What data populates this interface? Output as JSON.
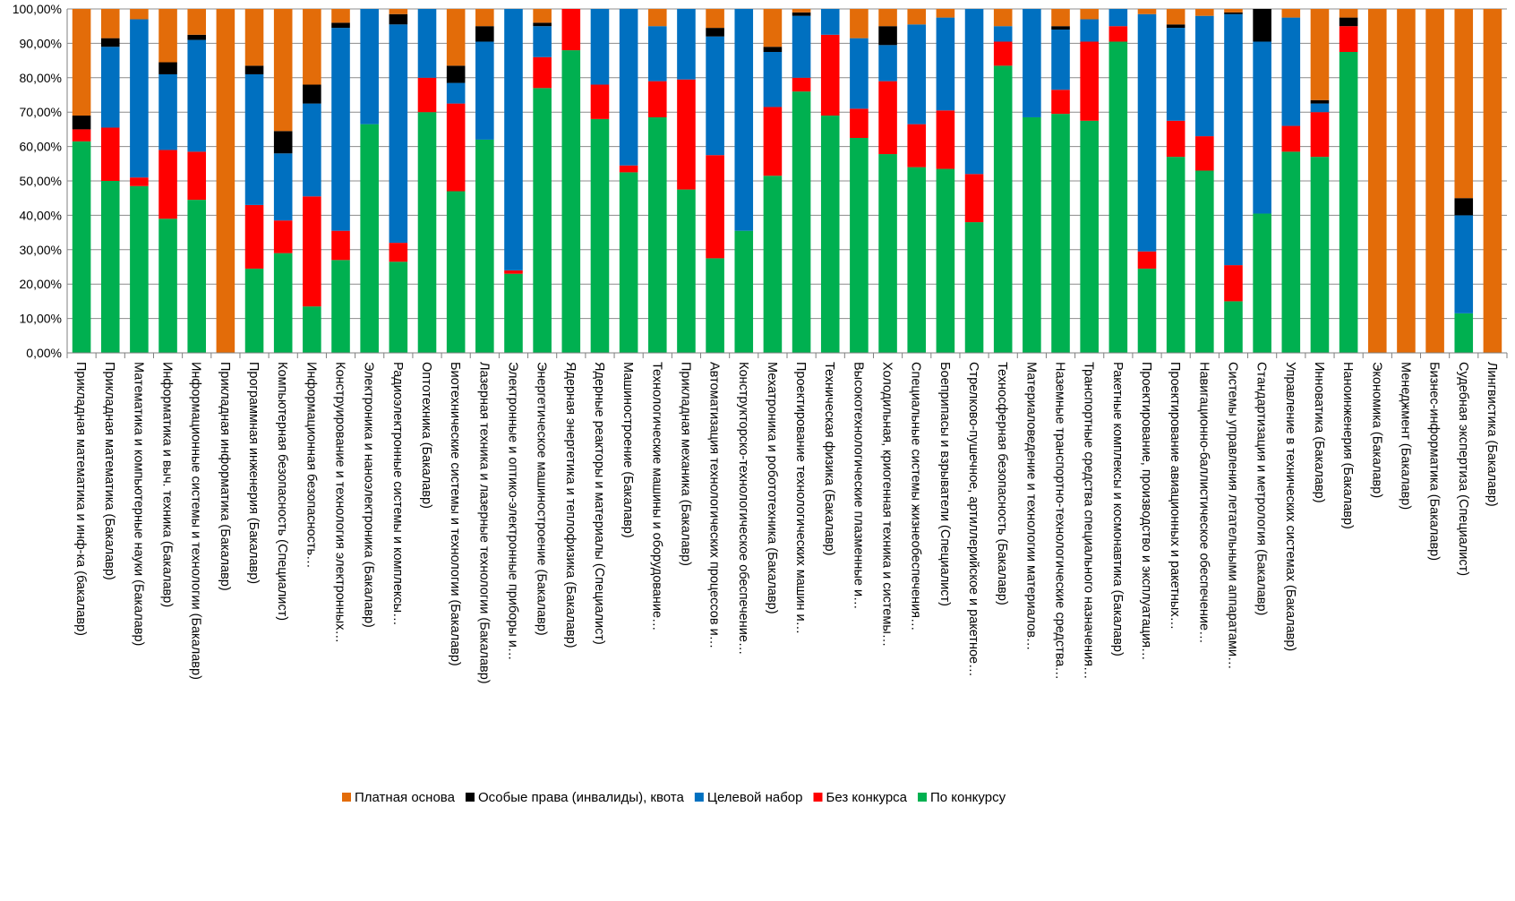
{
  "chart_data": {
    "type": "bar",
    "stacked": true,
    "percent_stacked": true,
    "title": "",
    "xlabel": "",
    "ylabel": "",
    "ylim": [
      0,
      1
    ],
    "yticks": [
      "0,00%",
      "10,00%",
      "20,00%",
      "30,00%",
      "40,00%",
      "50,00%",
      "60,00%",
      "70,00%",
      "80,00%",
      "90,00%",
      "100,00%"
    ],
    "grid": true,
    "legend_position": "bottom",
    "categories": [
      "Прикладная математика и инф-ка (бакалавр)",
      "Прикладная математика (Бакалавр)",
      "Математика и компьютерные науки (Бакалавр)",
      "Информатика и выч. техника (Бакалавр)",
      "Информационные системы и технологии (Бакалавр)",
      "Прикладная информатика (Бакалавр)",
      "Программная инженерия (Бакалавр)",
      "Компьютерная безопасность (Специалист)",
      "Информационная безопасность…",
      "Конструирование и технология электронных…",
      "Электроника и наноэлектроника (Бакалавр)",
      "Радиоэлектронные системы и комплексы…",
      "Оптотехника (Бакалавр)",
      "Биотехнические системы и технологии (Бакалавр)",
      "Лазерная техника и лазерные технологии (Бакалавр)",
      "Электронные и оптико-электронные приборы и…",
      "Энергетическое машиностроение (Бакалавр)",
      "Ядерная энергетика и теплофизика (Бакалавр)",
      "Ядерные реакторы и материалы (Специалист)",
      "Машиностроение (Бакалавр)",
      "Технологические машины и оборудование…",
      "Прикладная механика (Бакалавр)",
      "Автоматизация технологических процессов и…",
      "Конструкторско-технологическое обеспечение…",
      "Мехатроника и робототехника (Бакалавр)",
      "Проектирование технологических машин и…",
      "Техническая физика (Бакалавр)",
      "Высокотехнологические плазменные и…",
      "Холодильная, криогенная техника и системы…",
      "Специальные системы жизнеобеспечения…",
      "Боеприпасы и взрыватели (Специалист)",
      "Стрелково-пушечное, артиллерийское и ракетное…",
      "Техносферная безопасность (Бакалавр)",
      "Материаловедение и технологии материалов…",
      "Наземные транспортно-технологические средства…",
      "Транспортные средства специального назначения…",
      "Ракетные комплексы и космонавтика (Бакалавр)",
      "Проектирование, производство и эксплуатация…",
      "Проектирование авиационных и ракетных…",
      "Навигационно-баллистическое обеспечение…",
      "Системы управления летательными аппаратами…",
      "Стандартизация и метрология (Бакалавр)",
      "Управление в технических системах (Бакалавр)",
      "Инноватика (Бакалавр)",
      "Наноинженерия (Бакалавр)",
      "Экономика (Бакалавр)",
      "Менеджмент (Бакалавр)",
      "Бизнес-информатика (Бакалавр)",
      "Судебная экспертиза (Специалист)",
      "Лингвистика (Бакалавр)"
    ],
    "series": [
      {
        "name": "По конкурсу",
        "color": "#00B050",
        "values": [
          0.615,
          0.5,
          0.485,
          0.39,
          0.445,
          0.0,
          0.245,
          0.29,
          0.135,
          0.27,
          0.665,
          0.265,
          0.7,
          0.47,
          0.62,
          0.23,
          0.77,
          0.88,
          0.68,
          0.525,
          0.685,
          0.475,
          0.275,
          0.355,
          0.515,
          0.76,
          0.69,
          0.625,
          0.578,
          0.54,
          0.535,
          0.38,
          0.835,
          0.685,
          0.695,
          0.675,
          0.905,
          0.245,
          0.57,
          0.53,
          0.15,
          0.405,
          0.585,
          0.57,
          0.875,
          0.0,
          0.0,
          0.0,
          0.115,
          0.0
        ]
      },
      {
        "name": "Без конкурса",
        "color": "#FF0000",
        "values": [
          0.035,
          0.155,
          0.025,
          0.2,
          0.14,
          0.0,
          0.185,
          0.095,
          0.32,
          0.085,
          0.0,
          0.055,
          0.1,
          0.255,
          0.0,
          0.01,
          0.09,
          0.12,
          0.1,
          0.02,
          0.105,
          0.32,
          0.3,
          0.0,
          0.2,
          0.04,
          0.235,
          0.085,
          0.212,
          0.125,
          0.17,
          0.14,
          0.07,
          0.0,
          0.07,
          0.23,
          0.045,
          0.05,
          0.105,
          0.1,
          0.105,
          0.0,
          0.075,
          0.13,
          0.075,
          0.0,
          0.0,
          0.0,
          0.0,
          0.0
        ]
      },
      {
        "name": "Целевой набор",
        "color": "#0070C0",
        "values": [
          0.0,
          0.235,
          0.46,
          0.22,
          0.325,
          0.0,
          0.38,
          0.195,
          0.27,
          0.59,
          0.335,
          0.635,
          0.2,
          0.06,
          0.285,
          0.76,
          0.09,
          0.0,
          0.22,
          0.455,
          0.16,
          0.205,
          0.345,
          0.645,
          0.16,
          0.18,
          0.075,
          0.205,
          0.105,
          0.29,
          0.27,
          0.48,
          0.045,
          0.315,
          0.175,
          0.065,
          0.05,
          0.69,
          0.27,
          0.35,
          0.73,
          0.5,
          0.315,
          0.025,
          0.0,
          0.0,
          0.0,
          0.0,
          0.285,
          0.0
        ]
      },
      {
        "name": "Особые права (инвалиды), квота",
        "color": "#000000",
        "values": [
          0.04,
          0.025,
          0.0,
          0.035,
          0.015,
          0.0,
          0.025,
          0.065,
          0.055,
          0.015,
          0.0,
          0.03,
          0.0,
          0.05,
          0.045,
          0.0,
          0.01,
          0.0,
          0.0,
          0.0,
          0.0,
          0.0,
          0.025,
          0.0,
          0.015,
          0.01,
          0.0,
          0.0,
          0.055,
          0.0,
          0.0,
          0.0,
          0.0,
          0.0,
          0.01,
          0.0,
          0.0,
          0.0,
          0.01,
          0.0,
          0.005,
          0.095,
          0.0,
          0.01,
          0.025,
          0.0,
          0.0,
          0.0,
          0.05,
          0.0
        ]
      },
      {
        "name": "Платная основа",
        "color": "#E36C09",
        "values": [
          0.31,
          0.085,
          0.03,
          0.155,
          0.075,
          1.0,
          0.165,
          0.355,
          0.22,
          0.04,
          0.0,
          0.015,
          0.0,
          0.165,
          0.05,
          0.0,
          0.04,
          0.0,
          0.0,
          0.0,
          0.05,
          0.0,
          0.055,
          0.0,
          0.11,
          0.01,
          0.0,
          0.085,
          0.05,
          0.045,
          0.025,
          0.0,
          0.05,
          0.0,
          0.05,
          0.03,
          0.0,
          0.015,
          0.045,
          0.02,
          0.01,
          0.0,
          0.025,
          0.265,
          0.025,
          1.0,
          1.0,
          1.0,
          0.55,
          1.0
        ]
      }
    ],
    "legend_order": [
      "Платная основа",
      "Особые права (инвалиды), квота",
      "Целевой набор",
      "Без конкурса",
      "По конкурсу"
    ]
  }
}
